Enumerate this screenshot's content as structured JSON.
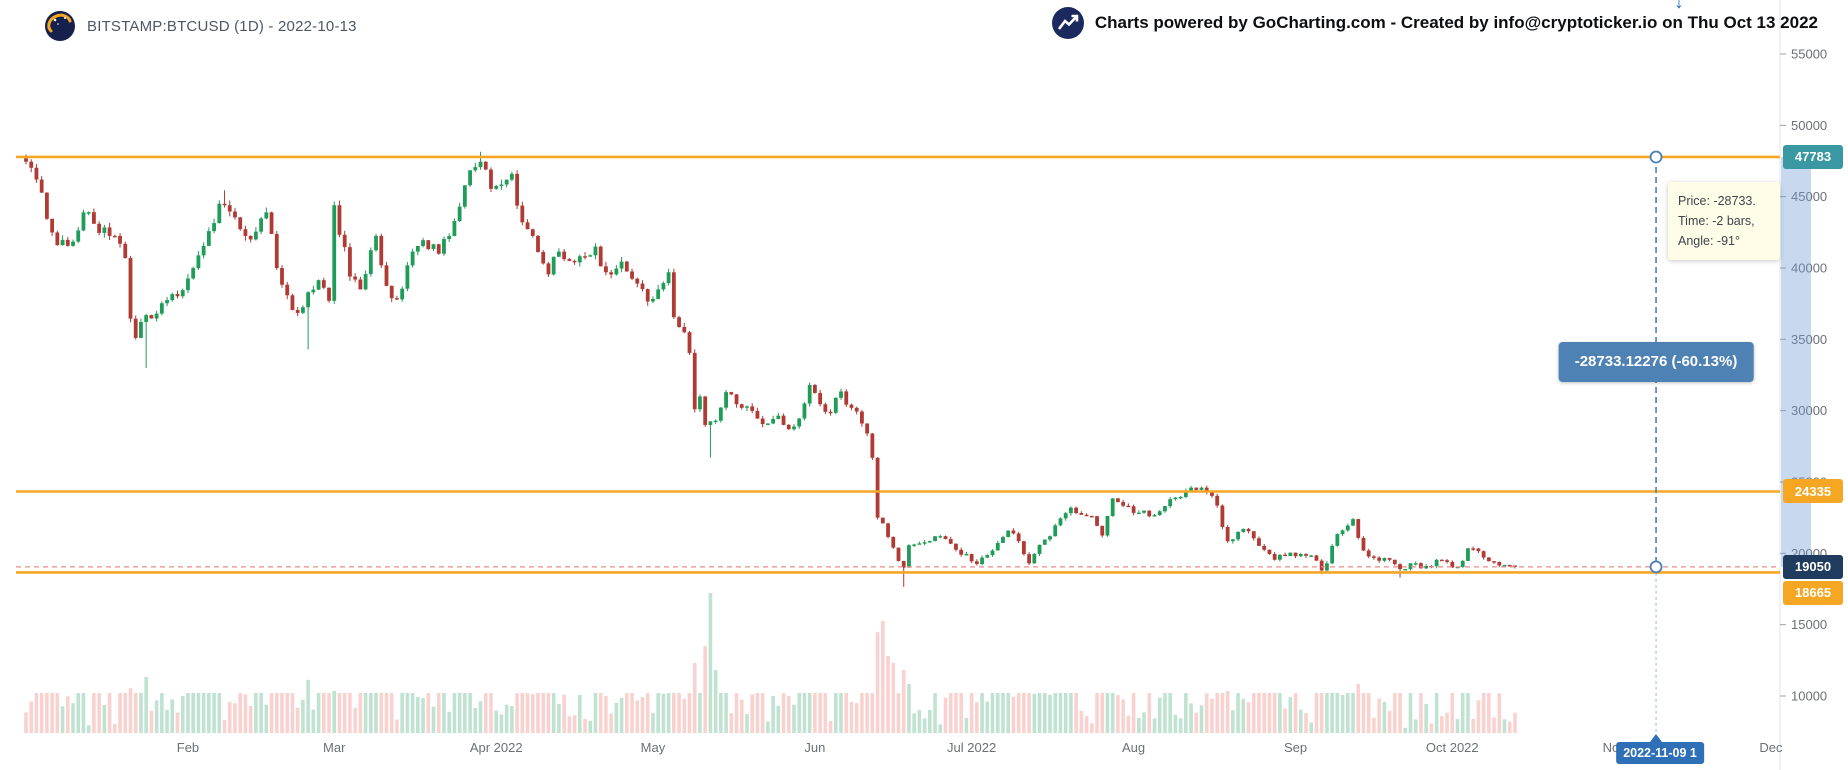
{
  "header": {
    "symbol_title": "BITSTAMP:BTCUSD (1D) - 2022-10-13",
    "credit": "Charts powered by GoCharting.com - Created by info@cryptoticker.io on Thu Oct 13 2022"
  },
  "colors": {
    "up": "#1f9d58",
    "down": "#b03a34",
    "vol_up": "rgba(46,160,98,0.30)",
    "vol_down": "rgba(236,112,107,0.32)",
    "line_orange": "#f5a623",
    "measure_blue": "#4a7fb5",
    "measure_band": "rgba(110,155,214,0.38)",
    "last_price_line": "#e98c87",
    "axis_text": "#6b7075",
    "date_badge_blue": "#2e6fb8"
  },
  "chart_data": {
    "type": "candlestick",
    "symbol": "BITSTAMP:BTCUSD",
    "interval": "1D",
    "as_of_date": "2022-10-13",
    "x_axis": {
      "start_date": "2022-01-01",
      "tick_labels": [
        "Feb",
        "Mar",
        "Apr 2022",
        "May",
        "Jun",
        "Jul 2022",
        "Aug",
        "Sep",
        "Oct 2022",
        "Nov",
        "Dec"
      ],
      "month_start_days": [
        31,
        59,
        90,
        120,
        151,
        181,
        212,
        243,
        273,
        304,
        334
      ]
    },
    "y_axis": {
      "tick_values": [
        55000,
        50000,
        45000,
        40000,
        35000,
        30000,
        25000,
        20000,
        15000,
        10000
      ]
    },
    "close_waypoints": [
      [
        "2022-01-01",
        47450
      ],
      [
        "2022-01-03",
        46200
      ],
      [
        "2022-01-05",
        43450
      ],
      [
        "2022-01-07",
        41600
      ],
      [
        "2022-01-10",
        41850
      ],
      [
        "2022-01-12",
        43900
      ],
      [
        "2022-01-14",
        43100
      ],
      [
        "2022-01-17",
        42250
      ],
      [
        "2022-01-19",
        41700
      ],
      [
        "2022-01-20",
        40700
      ],
      [
        "2022-01-21",
        36450
      ],
      [
        "2022-01-22",
        35100
      ],
      [
        "2022-01-24",
        36700
      ],
      [
        "2022-01-26",
        36800
      ],
      [
        "2022-01-28",
        37750
      ],
      [
        "2022-01-31",
        38450
      ],
      [
        "2022-02-04",
        41550
      ],
      [
        "2022-02-07",
        44500
      ],
      [
        "2022-02-10",
        43550
      ],
      [
        "2022-02-12",
        42250
      ],
      [
        "2022-02-14",
        42550
      ],
      [
        "2022-02-16",
        43900
      ],
      [
        "2022-02-18",
        40000
      ],
      [
        "2022-02-21",
        37050
      ],
      [
        "2022-02-23",
        37250
      ],
      [
        "2022-02-24",
        38300
      ],
      [
        "2022-02-26",
        39150
      ],
      [
        "2022-02-28",
        37700
      ],
      [
        "2022-03-01",
        44400
      ],
      [
        "2022-03-04",
        39400
      ],
      [
        "2022-03-06",
        38500
      ],
      [
        "2022-03-09",
        42250
      ],
      [
        "2022-03-11",
        38750
      ],
      [
        "2022-03-13",
        37800
      ],
      [
        "2022-03-16",
        41150
      ],
      [
        "2022-03-18",
        41950
      ],
      [
        "2022-03-21",
        41000
      ],
      [
        "2022-03-25",
        44300
      ],
      [
        "2022-03-27",
        46850
      ],
      [
        "2022-03-29",
        47450
      ],
      [
        "2022-03-31",
        45550
      ],
      [
        "2022-04-02",
        45850
      ],
      [
        "2022-04-04",
        46600
      ],
      [
        "2022-04-06",
        43200
      ],
      [
        "2022-04-08",
        42250
      ],
      [
        "2022-04-11",
        39550
      ],
      [
        "2022-04-13",
        41150
      ],
      [
        "2022-04-16",
        40400
      ],
      [
        "2022-04-18",
        40800
      ],
      [
        "2022-04-20",
        41500
      ],
      [
        "2022-04-22",
        39700
      ],
      [
        "2022-04-25",
        40450
      ],
      [
        "2022-04-27",
        39250
      ],
      [
        "2022-04-30",
        37650
      ],
      [
        "2022-05-02",
        38500
      ],
      [
        "2022-05-04",
        39700
      ],
      [
        "2022-05-05",
        36550
      ],
      [
        "2022-05-07",
        35500
      ],
      [
        "2022-05-08",
        34050
      ],
      [
        "2022-05-09",
        30100
      ],
      [
        "2022-05-10",
        31000
      ],
      [
        "2022-05-11",
        29000
      ],
      [
        "2022-05-12",
        29250
      ],
      [
        "2022-05-13",
        29300
      ],
      [
        "2022-05-15",
        31300
      ],
      [
        "2022-05-17",
        30450
      ],
      [
        "2022-05-19",
        30300
      ],
      [
        "2022-05-21",
        29450
      ],
      [
        "2022-05-23",
        29100
      ],
      [
        "2022-05-25",
        29650
      ],
      [
        "2022-05-27",
        28700
      ],
      [
        "2022-05-29",
        29450
      ],
      [
        "2022-05-31",
        31800
      ],
      [
        "2022-06-02",
        30450
      ],
      [
        "2022-06-04",
        29850
      ],
      [
        "2022-06-06",
        31350
      ],
      [
        "2022-06-08",
        30200
      ],
      [
        "2022-06-10",
        29100
      ],
      [
        "2022-06-11",
        28400
      ],
      [
        "2022-06-12",
        26700
      ],
      [
        "2022-06-13",
        22500
      ],
      [
        "2022-06-14",
        22100
      ],
      [
        "2022-06-16",
        20400
      ],
      [
        "2022-06-18",
        19000
      ],
      [
        "2022-06-19",
        20570
      ],
      [
        "2022-06-21",
        20700
      ],
      [
        "2022-06-24",
        21200
      ],
      [
        "2022-06-26",
        21000
      ],
      [
        "2022-06-28",
        20250
      ],
      [
        "2022-06-30",
        19950
      ],
      [
        "2022-07-02",
        19250
      ],
      [
        "2022-07-05",
        20200
      ],
      [
        "2022-07-08",
        21600
      ],
      [
        "2022-07-10",
        20850
      ],
      [
        "2022-07-12",
        19300
      ],
      [
        "2022-07-14",
        20600
      ],
      [
        "2022-07-16",
        21200
      ],
      [
        "2022-07-18",
        22450
      ],
      [
        "2022-07-20",
        23200
      ],
      [
        "2022-07-22",
        22700
      ],
      [
        "2022-07-24",
        22600
      ],
      [
        "2022-07-26",
        21250
      ],
      [
        "2022-07-28",
        23850
      ],
      [
        "2022-07-31",
        23300
      ],
      [
        "2022-08-02",
        22850
      ],
      [
        "2022-08-04",
        22600
      ],
      [
        "2022-08-06",
        22950
      ],
      [
        "2022-08-08",
        23800
      ],
      [
        "2022-08-10",
        23950
      ],
      [
        "2022-08-11",
        24400
      ],
      [
        "2022-08-13",
        24450
      ],
      [
        "2022-08-15",
        24300
      ],
      [
        "2022-08-17",
        23350
      ],
      [
        "2022-08-19",
        20850
      ],
      [
        "2022-08-21",
        21500
      ],
      [
        "2022-08-23",
        21550
      ],
      [
        "2022-08-26",
        20250
      ],
      [
        "2022-08-28",
        19550
      ],
      [
        "2022-08-31",
        20050
      ],
      [
        "2022-09-02",
        19950
      ],
      [
        "2022-09-04",
        19850
      ],
      [
        "2022-09-06",
        18800
      ],
      [
        "2022-09-07",
        19300
      ],
      [
        "2022-09-09",
        21350
      ],
      [
        "2022-09-12",
        22400
      ],
      [
        "2022-09-14",
        20200
      ],
      [
        "2022-09-16",
        19700
      ],
      [
        "2022-09-19",
        19550
      ],
      [
        "2022-09-21",
        18900
      ],
      [
        "2022-09-23",
        19300
      ],
      [
        "2022-09-25",
        18950
      ],
      [
        "2022-09-27",
        19100
      ],
      [
        "2022-09-28",
        19550
      ],
      [
        "2022-09-30",
        19400
      ],
      [
        "2022-10-02",
        19050
      ],
      [
        "2022-10-04",
        20350
      ],
      [
        "2022-10-06",
        20150
      ],
      [
        "2022-10-08",
        19450
      ],
      [
        "2022-10-10",
        19150
      ],
      [
        "2022-10-12",
        19150
      ],
      [
        "2022-10-13",
        19050
      ]
    ],
    "wick_lows": {
      "2022-01-24": 33000,
      "2022-02-24": 34300,
      "2022-05-12": 26700,
      "2022-06-18": 17650,
      "2022-09-06": 18540,
      "2022-09-21": 18300
    },
    "wick_highs": {
      "2022-01-01": 47950,
      "2022-02-08": 45450,
      "2022-03-29": 48150,
      "2022-08-14": 24480
    },
    "volume_spikes": {
      "2022-01-21": 0.32,
      "2022-01-24": 0.4,
      "2022-02-24": 0.38,
      "2022-03-01": 0.3,
      "2022-05-09": 0.5,
      "2022-05-11": 0.62,
      "2022-05-12": 1.0,
      "2022-05-13": 0.45,
      "2022-06-13": 0.72,
      "2022-06-14": 0.8,
      "2022-06-15": 0.55,
      "2022-06-16": 0.5,
      "2022-06-18": 0.45,
      "2022-06-19": 0.35,
      "2022-07-13": 0.28,
      "2022-08-19": 0.3,
      "2022-09-13": 0.35
    },
    "horizontal_lines": [
      {
        "price": 47783,
        "color": "#f5a623"
      },
      {
        "price": 24335,
        "color": "#f5a623"
      },
      {
        "price": 18665,
        "color": "#f5a623"
      }
    ],
    "last_price": 19050,
    "axis_badges": [
      {
        "text": "47783",
        "price": 47783,
        "color": "#3a98a2"
      },
      {
        "text": "24335",
        "price": 24335,
        "color": "#f5a623"
      },
      {
        "text": "19050",
        "price": 19050,
        "color": "#1f3b5e"
      },
      {
        "text": "18665",
        "price": 18665,
        "color": "#f5a623"
      }
    ],
    "measurement": {
      "date": "2022-11-09",
      "from_price": 47783,
      "to_price": 19050,
      "label": "-28733.12276 (-60.13%)",
      "tooltip": {
        "price_line": "Price: -28733.",
        "time_line": "Time: -2 bars,",
        "angle_line": "Angle: -91°"
      },
      "date_badge": "2022-11-09 1"
    }
  }
}
